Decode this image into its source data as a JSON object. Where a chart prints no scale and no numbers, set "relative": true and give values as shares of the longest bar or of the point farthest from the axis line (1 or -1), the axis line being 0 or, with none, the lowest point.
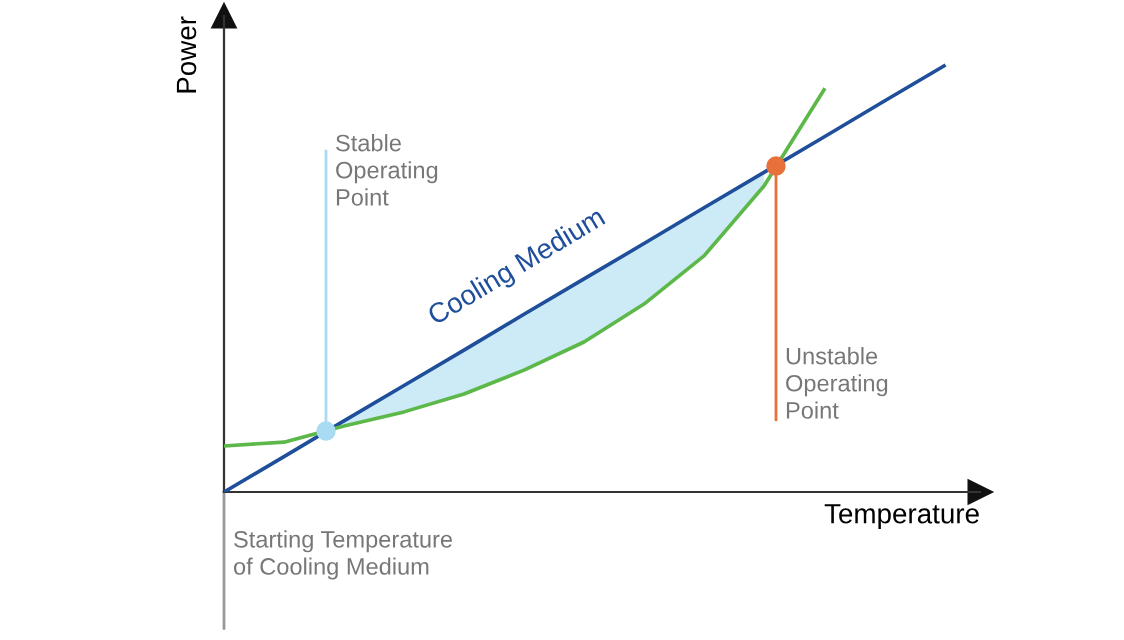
{
  "chart_data": {
    "type": "line",
    "relative": true,
    "xlabel": "Temperature",
    "ylabel": "Power",
    "categories": [
      null,
      null,
      null,
      null,
      null,
      null,
      null,
      null,
      null,
      null,
      null,
      null,
      null
    ],
    "series": [
      {
        "name": "Cooling Medium",
        "color": "#1f4e9a",
        "values": [
          0,
          0.083,
          0.167,
          0.25,
          0.333,
          0.417,
          0.5,
          0.583,
          0.667,
          0.75,
          0.833,
          0.917,
          1
        ],
        "lower": [
          null,
          null,
          0.155,
          0.188,
          0.23,
          0.286,
          0.352,
          0.441,
          0.554,
          0.718,
          null,
          null,
          null
        ],
        "upper": [
          null,
          null,
          0.167,
          0.25,
          0.333,
          0.417,
          0.5,
          0.583,
          0.667,
          0.75,
          null,
          null,
          null
        ]
      },
      {
        "color": "#5cb849",
        "values": [
          0.108,
          0.117,
          0.155,
          0.188,
          0.23,
          0.286,
          0.352,
          0.441,
          0.554,
          0.718,
          0.944,
          null,
          null
        ]
      }
    ],
    "annotations": [
      "Stable\nOperating\nPoint",
      "Unstable\nOperating\nPoint",
      "Starting Temperature\nof Cooling Medium"
    ],
    "legend": false,
    "marker": "none",
    "line_style": "solid"
  }
}
